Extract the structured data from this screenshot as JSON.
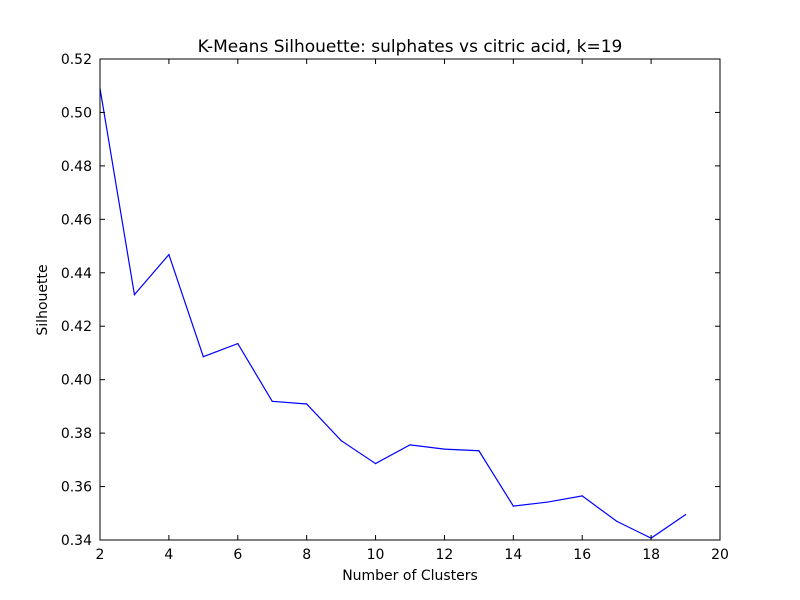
{
  "chart_data": {
    "type": "line",
    "title": "K-Means Silhouette: sulphates vs citric acid, k=19",
    "xlabel": "Number of Clusters",
    "ylabel": "Silhouette",
    "xlim": [
      2,
      20
    ],
    "ylim": [
      0.34,
      0.52
    ],
    "xticks": [
      2,
      4,
      6,
      8,
      10,
      12,
      14,
      16,
      18,
      20
    ],
    "yticks": [
      0.34,
      0.36,
      0.38,
      0.4,
      0.42,
      0.44,
      0.46,
      0.48,
      0.5,
      0.52
    ],
    "xtick_labels": [
      "2",
      "4",
      "6",
      "8",
      "10",
      "12",
      "14",
      "16",
      "18",
      "20"
    ],
    "ytick_labels": [
      "0.34",
      "0.36",
      "0.38",
      "0.40",
      "0.42",
      "0.44",
      "0.46",
      "0.48",
      "0.50",
      "0.52"
    ],
    "grid": false,
    "series": [
      {
        "color": "#0000ff",
        "x": [
          2,
          3,
          4,
          5,
          6,
          7,
          8,
          9,
          10,
          11,
          12,
          13,
          14,
          15,
          16,
          17,
          18,
          19
        ],
        "y": [
          0.509,
          0.4318,
          0.4468,
          0.4086,
          0.4135,
          0.3919,
          0.3909,
          0.3772,
          0.3686,
          0.3756,
          0.374,
          0.3734,
          0.3527,
          0.3542,
          0.3565,
          0.347,
          0.3407,
          0.3495
        ]
      }
    ]
  }
}
